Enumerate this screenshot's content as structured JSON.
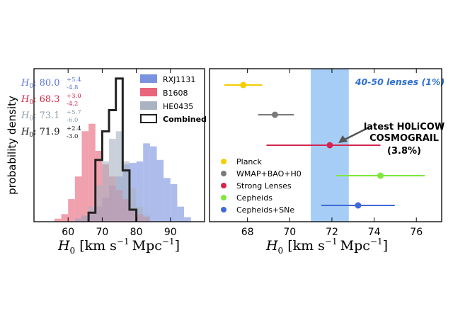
{
  "chart_data": [
    {
      "type": "histogram",
      "ylabel": "probability density",
      "xlabel": "H_0 [km s^-1 Mpc^-1]",
      "xlim": [
        50,
        100
      ],
      "ylim": [
        0,
        1.0
      ],
      "xticks": [
        60,
        70,
        80,
        90
      ],
      "xtick_labels": [
        "60",
        "70",
        "80",
        "90"
      ],
      "bin_width": 2,
      "series": [
        {
          "name": "RXJ1131",
          "color": "#7b93de",
          "bins": [
            [
              62,
              0.02
            ],
            [
              64,
              0.04
            ],
            [
              66,
              0.06
            ],
            [
              68,
              0.1
            ],
            [
              70,
              0.16
            ],
            [
              72,
              0.24
            ],
            [
              74,
              0.3
            ],
            [
              76,
              0.38
            ],
            [
              78,
              0.39
            ],
            [
              80,
              0.4
            ],
            [
              82,
              0.52
            ],
            [
              84,
              0.5
            ],
            [
              86,
              0.41
            ],
            [
              88,
              0.29
            ],
            [
              90,
              0.25
            ],
            [
              92,
              0.1
            ],
            [
              94,
              0.03
            ]
          ]
        },
        {
          "name": "B1608",
          "color": "#e8657a",
          "bins": [
            [
              56,
              0.02
            ],
            [
              58,
              0.05
            ],
            [
              60,
              0.15
            ],
            [
              62,
              0.3
            ],
            [
              64,
              0.6
            ],
            [
              66,
              0.65
            ],
            [
              68,
              0.47
            ],
            [
              70,
              0.38
            ],
            [
              72,
              0.3
            ],
            [
              74,
              0.21
            ],
            [
              76,
              0.15
            ],
            [
              78,
              0.08
            ],
            [
              80,
              0.05
            ],
            [
              82,
              0.03
            ]
          ]
        },
        {
          "name": "HE0435",
          "color": "#a9b3c1",
          "bins": [
            [
              62,
              0.02
            ],
            [
              64,
              0.04
            ],
            [
              66,
              0.1
            ],
            [
              68,
              0.24
            ],
            [
              70,
              0.4
            ],
            [
              72,
              0.55
            ],
            [
              74,
              0.6
            ],
            [
              76,
              0.4
            ],
            [
              78,
              0.22
            ],
            [
              80,
              0.1
            ],
            [
              82,
              0.04
            ]
          ]
        },
        {
          "name": "Combined",
          "color": "#222222",
          "bins": [
            [
              66,
              0.06
            ],
            [
              68,
              0.41
            ],
            [
              70,
              0.6
            ],
            [
              72,
              0.74
            ],
            [
              74,
              0.95
            ],
            [
              76,
              0.34
            ],
            [
              78,
              0.08
            ]
          ]
        }
      ],
      "annotations": [
        {
          "name": "rxj-value",
          "color": "#5b75d6",
          "label": "H_0",
          "value": "80.0",
          "plus": "+5.4",
          "minus": "-4.8"
        },
        {
          "name": "b1608-value",
          "color": "#d82044",
          "label": "H_0",
          "value": "68.3",
          "plus": "+3.0",
          "minus": "-4.2"
        },
        {
          "name": "he0435-value",
          "color": "#8a9aab",
          "label": "H_0",
          "value": "73.1",
          "plus": "+5.7",
          "minus": "-6.0"
        },
        {
          "name": "combined-value",
          "color": "#111111",
          "label": "H_0",
          "value": "71.9",
          "plus": "+2.4",
          "minus": "-3.0"
        }
      ]
    },
    {
      "type": "errorbar",
      "xlabel": "H_0 [km s^-1 Mpc^-1]",
      "xlim": [
        66.2,
        77.2
      ],
      "xticks": [
        68,
        70,
        72,
        74,
        76
      ],
      "xtick_labels": [
        "68",
        "70",
        "72",
        "74",
        "76"
      ],
      "band": {
        "x0": 71.0,
        "x1": 72.8,
        "color": "#a6cdf6",
        "label": "40-50 lenses (1%)"
      },
      "series": [
        {
          "name": "Planck",
          "color": "#f5cd00",
          "x": 67.8,
          "xerr_low": 0.9,
          "xerr_high": 0.9,
          "row": 0
        },
        {
          "name": "WMAP+BAO+H0",
          "color": "#7a7a7a",
          "x": 69.3,
          "xerr_low": 0.8,
          "xerr_high": 0.9,
          "row": 1
        },
        {
          "name": "Strong Lenses",
          "color": "#d42550",
          "x": 71.9,
          "xerr_low": 3.0,
          "xerr_high": 2.4,
          "row": 2
        },
        {
          "name": "Cepheids",
          "color": "#7ee83c",
          "x": 74.3,
          "xerr_low": 2.1,
          "xerr_high": 2.1,
          "row": 3
        },
        {
          "name": "Cepheids+SNe",
          "color": "#3f6ad8",
          "x": 73.24,
          "xerr_low": 1.74,
          "xerr_high": 1.74,
          "row": 4
        }
      ],
      "arrow_label": [
        "latest H0LiCOW",
        "COSMOGRAIL",
        "(3.8%)"
      ]
    }
  ]
}
